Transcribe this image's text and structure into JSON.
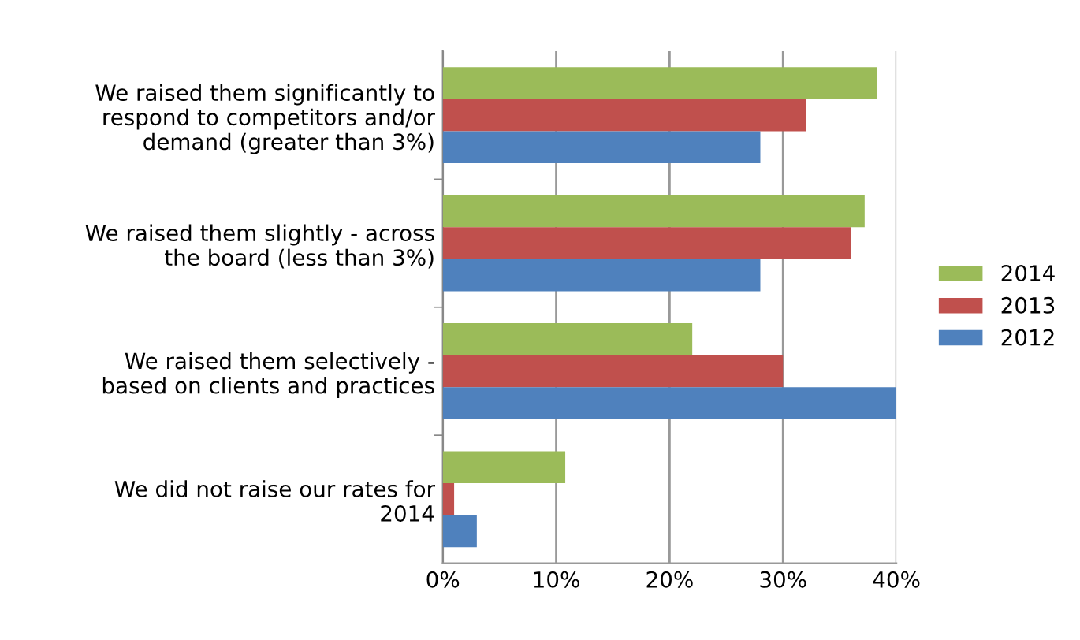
{
  "chart_data": {
    "type": "bar",
    "orientation": "horizontal",
    "categories": [
      "We raised them significantly to\nrespond to competitors and/or\ndemand (greater than 3%)",
      "We raised them slightly - across\nthe board (less than 3%)",
      "We raised them selectively -\nbased on clients and practices",
      "We did not raise our rates for\n2014"
    ],
    "series": [
      {
        "name": "2014",
        "color": "#9bbb59",
        "values": [
          38.3,
          37.2,
          22,
          10.8
        ]
      },
      {
        "name": "2013",
        "color": "#c0504d",
        "values": [
          32,
          36,
          30,
          1
        ]
      },
      {
        "name": "2012",
        "color": "#4f81bd",
        "values": [
          28,
          28,
          40,
          3
        ]
      }
    ],
    "xlim": [
      0,
      40
    ],
    "xticks": [
      {
        "value": 0,
        "label": "0%"
      },
      {
        "value": 10,
        "label": "10%"
      },
      {
        "value": 20,
        "label": "20%"
      },
      {
        "value": 30,
        "label": "30%"
      },
      {
        "value": 40,
        "label": "40%"
      }
    ],
    "grid": "x",
    "legend": "right"
  }
}
